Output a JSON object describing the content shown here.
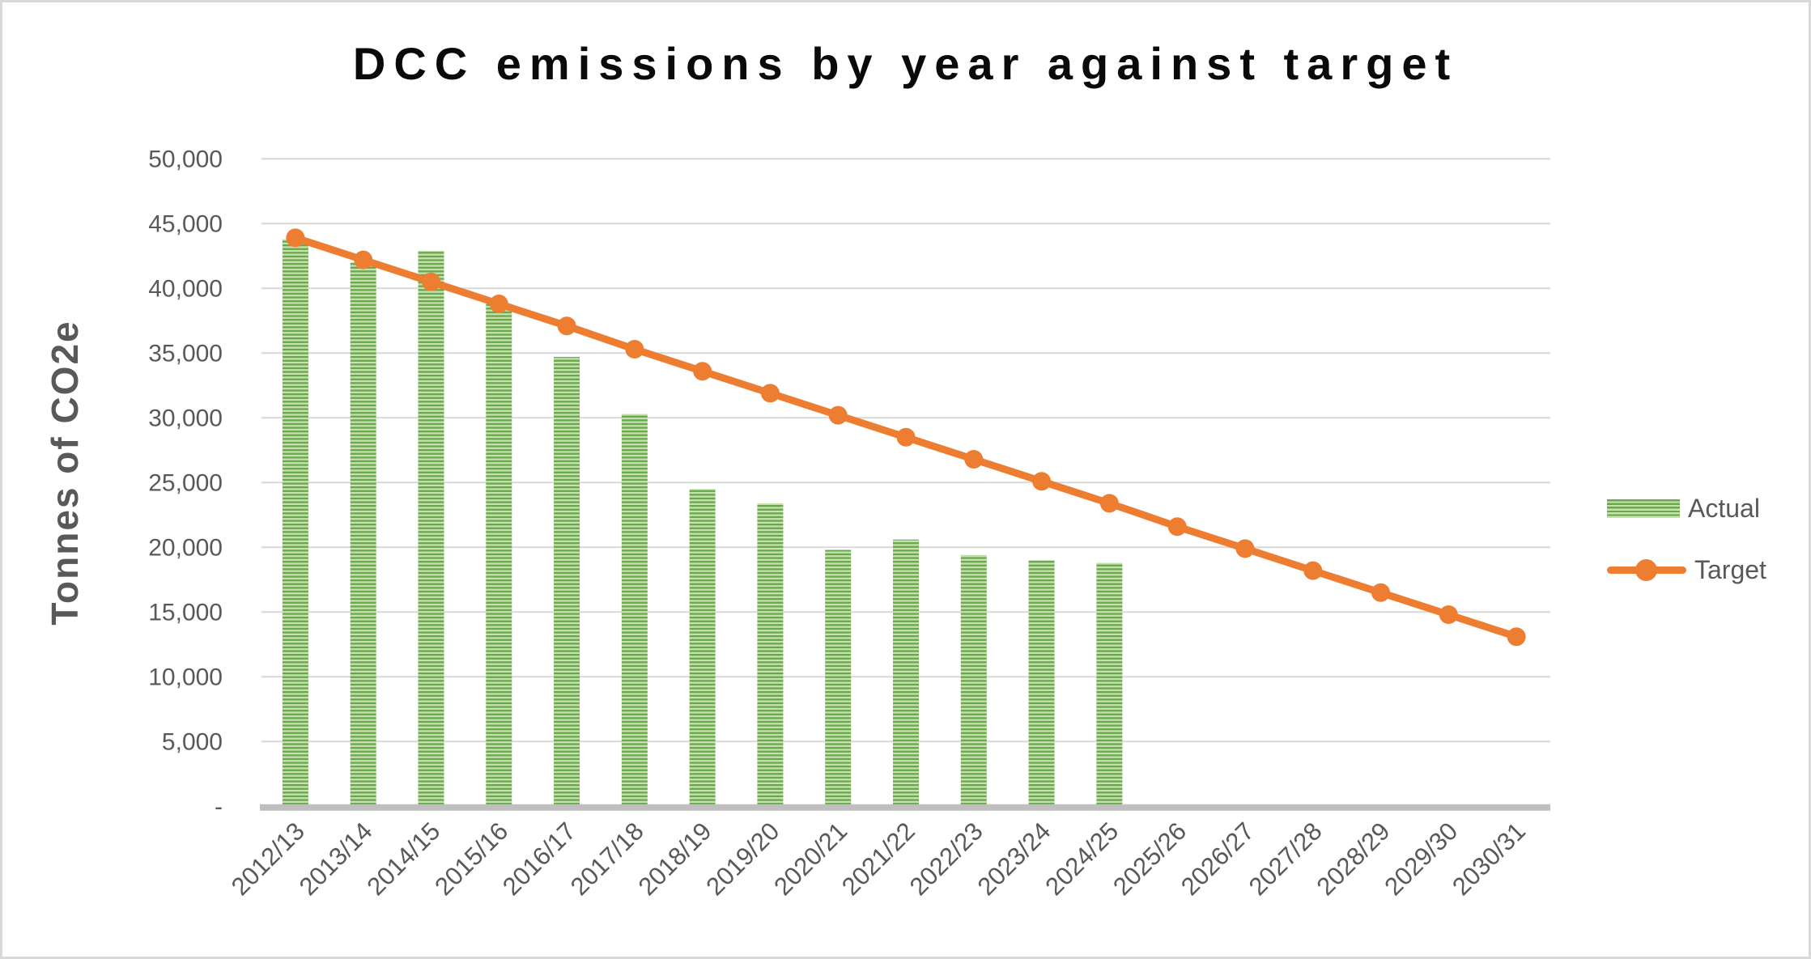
{
  "frame": {
    "background": "#ffffff",
    "border_color": "#d9d9d9"
  },
  "chart_data": {
    "type": "combo",
    "title": "DCC emissions by year against target",
    "ylabel": "Tonnes of CO2e",
    "categories": [
      "2012/13",
      "2013/14",
      "2014/15",
      "2015/16",
      "2016/17",
      "2017/18",
      "2018/19",
      "2019/20",
      "2020/21",
      "2021/22",
      "2022/23",
      "2023/24",
      "2024/25",
      "2025/26",
      "2026/27",
      "2027/28",
      "2028/29",
      "2029/30",
      "2030/31"
    ],
    "series": [
      {
        "name": "Actual",
        "type": "bar",
        "pattern": "horizontal-stripes",
        "color_dark": "#6aa84d",
        "color_light": "#c6e0ae",
        "values": [
          43800,
          42000,
          42900,
          38800,
          34700,
          30300,
          24500,
          23400,
          19800,
          20600,
          19400,
          19000,
          18800,
          null,
          null,
          null,
          null,
          null,
          null
        ]
      },
      {
        "name": "Target",
        "type": "line",
        "marker": "circle",
        "color": "#ED7D31",
        "values": [
          43900,
          42200,
          40500,
          38800,
          37100,
          35300,
          33600,
          31900,
          30200,
          28500,
          26800,
          25100,
          23400,
          21600,
          19900,
          18200,
          16500,
          14800,
          13100
        ]
      }
    ],
    "y_ticks": [
      {
        "value": 50000,
        "label": "50,000"
      },
      {
        "value": 45000,
        "label": "45,000"
      },
      {
        "value": 40000,
        "label": "40,000"
      },
      {
        "value": 35000,
        "label": "35,000"
      },
      {
        "value": 30000,
        "label": "30,000"
      },
      {
        "value": 25000,
        "label": "25,000"
      },
      {
        "value": 20000,
        "label": "20,000"
      },
      {
        "value": 15000,
        "label": "15,000"
      },
      {
        "value": 10000,
        "label": "10,000"
      },
      {
        "value": 5000,
        "label": "5,000"
      },
      {
        "value": 0,
        "label": "-"
      }
    ],
    "ylim": [
      0,
      50000
    ],
    "grid": true,
    "legend_position": "right",
    "colors": {
      "axis_text": "#595959",
      "gridline": "#d9d9d9",
      "axis_line": "#bfbfbf",
      "title": "#0a0a0a"
    }
  }
}
